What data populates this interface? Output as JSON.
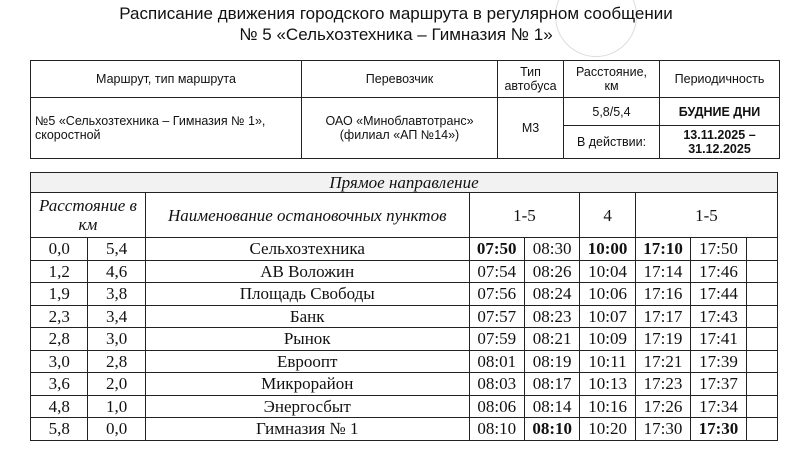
{
  "title": {
    "line1": "Расписание движения городского маршрута в регулярном сообщении",
    "line2": "№ 5 «Сельхозтехника – Гимназия № 1»"
  },
  "info": {
    "headers": [
      "Маршрут, тип маршрута",
      "Перевозчик",
      "Тип автобуса",
      "Расстояние, км",
      "Периодичность"
    ],
    "route": "№5 «Сельхозтехника – Гимназия № 1», скоростной",
    "carrier": "ОАО «Миноблавтотранс» (филиал «АП №14»)",
    "bus_type": "М3",
    "distance": "5,8/5,4",
    "periodicity": "БУДНИЕ ДНИ",
    "valid_label": "В действии:",
    "valid_dates": "13.11.2025 – 31.12.2025"
  },
  "schedule": {
    "direction": "Прямое направление",
    "dist_header": "Расстояние в км",
    "name_header": "Наименование остановочных пунктов",
    "day_groups": [
      "1-5",
      "4",
      "1-5"
    ],
    "rows": [
      {
        "d1": "0,0",
        "d2": "5,4",
        "stop": "Сельхозтехника",
        "times": [
          "07:50",
          "08:30",
          "10:00",
          "17:10",
          "17:50"
        ],
        "bold": [
          0,
          2,
          3
        ]
      },
      {
        "d1": "1,2",
        "d2": "4,6",
        "stop": "АВ Воложин",
        "times": [
          "07:54",
          "08:26",
          "10:04",
          "17:14",
          "17:46"
        ],
        "bold": []
      },
      {
        "d1": "1,9",
        "d2": "3,8",
        "stop": "Площадь Свободы",
        "times": [
          "07:56",
          "08:24",
          "10:06",
          "17:16",
          "17:44"
        ],
        "bold": []
      },
      {
        "d1": "2,3",
        "d2": "3,4",
        "stop": "Банк",
        "times": [
          "07:57",
          "08:23",
          "10:07",
          "17:17",
          "17:43"
        ],
        "bold": []
      },
      {
        "d1": "2,8",
        "d2": "3,0",
        "stop": "Рынок",
        "times": [
          "07:59",
          "08:21",
          "10:09",
          "17:19",
          "17:41"
        ],
        "bold": []
      },
      {
        "d1": "3,0",
        "d2": "2,8",
        "stop": "Евроопт",
        "times": [
          "08:01",
          "08:19",
          "10:11",
          "17:21",
          "17:39"
        ],
        "bold": []
      },
      {
        "d1": "3,6",
        "d2": "2,0",
        "stop": "Микрорайон",
        "times": [
          "08:03",
          "08:17",
          "10:13",
          "17:23",
          "17:37"
        ],
        "bold": []
      },
      {
        "d1": "4,8",
        "d2": "1,0",
        "stop": "Энергосбыт",
        "times": [
          "08:06",
          "08:14",
          "10:16",
          "17:26",
          "17:34"
        ],
        "bold": []
      },
      {
        "d1": "5,8",
        "d2": "0,0",
        "stop": "Гимназия № 1",
        "times": [
          "08:10",
          "08:10",
          "10:20",
          "17:30",
          "17:30"
        ],
        "bold": [
          1,
          4
        ]
      }
    ]
  }
}
